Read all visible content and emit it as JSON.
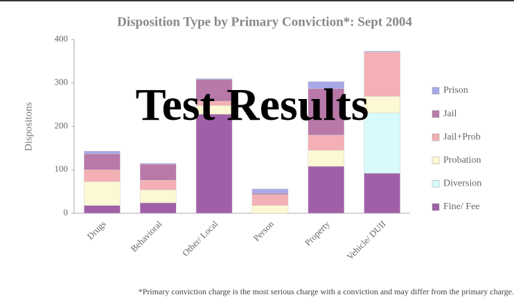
{
  "chart_data": {
    "type": "stacked_bar",
    "title": "Disposition Type by Primary Conviction*: Sept 2004",
    "ylabel": "Dispositons",
    "annotation": "Test Results",
    "footnote": "*Primary conviction charge is the most serious charge with a conviction and may differ from the primary charge.",
    "categories": [
      "Drugs",
      "Behavioral",
      "Other/ Local",
      "Person",
      "Property",
      "Vehicle/ DUII"
    ],
    "series": [
      {
        "name": "Fine/ Fee",
        "color": "#a060a8",
        "values": [
          18,
          24,
          228,
          0,
          108,
          92
        ]
      },
      {
        "name": "Diversion",
        "color": "#d8fafa",
        "values": [
          0,
          0,
          0,
          0,
          0,
          139
        ]
      },
      {
        "name": "Probation",
        "color": "#fdf8d4",
        "values": [
          55,
          30,
          20,
          18,
          37,
          38
        ]
      },
      {
        "name": "Jail+Prob",
        "color": "#f4b0b4",
        "values": [
          27,
          22,
          10,
          25,
          35,
          102
        ]
      },
      {
        "name": "Jail",
        "color": "#b878a8",
        "values": [
          37,
          37,
          50,
          3,
          107,
          0
        ]
      },
      {
        "name": "Prison",
        "color": "#a8a8e8",
        "values": [
          6,
          2,
          2,
          10,
          16,
          2
        ]
      }
    ],
    "ylim": [
      0,
      400
    ],
    "yticks": [
      0,
      100,
      200,
      300,
      400
    ],
    "legend": "right"
  }
}
